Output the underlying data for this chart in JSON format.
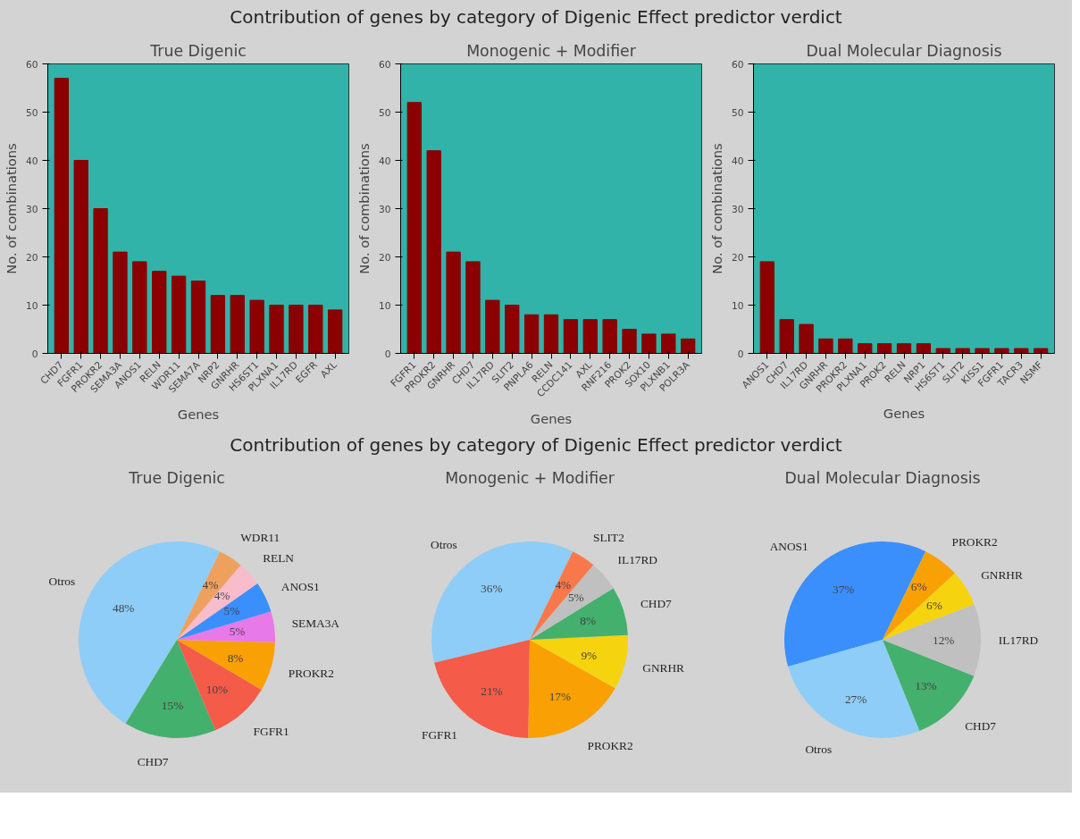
{
  "chart_data": [
    {
      "type": "bar",
      "title": "True Digenic",
      "xlabel": "Genes",
      "ylabel": "No. of combinations",
      "annotations": [
        "Contribution of genes by category of Digenic Effect predictor verdict"
      ],
      "categories": [
        "CHD7",
        "FGFR1",
        "PROKR2",
        "SEMA3A",
        "ANOS1",
        "RELN",
        "WDR11",
        "SEMA7A",
        "NRP2",
        "GNRHR",
        "HS6ST1",
        "PLXNA1",
        "IL17RD",
        "EGFR",
        "AXL"
      ],
      "values": [
        57,
        40,
        30,
        21,
        19,
        17,
        16,
        15,
        12,
        12,
        11,
        10,
        10,
        10,
        9
      ],
      "color": "#8b0000",
      "ylim": [
        0,
        60
      ],
      "yticks": [
        0,
        10,
        20,
        30,
        40,
        50,
        60
      ],
      "grid": false
    },
    {
      "type": "bar",
      "title": "Monogenic + Modifier",
      "xlabel": "Genes",
      "ylabel": "No. of combinations",
      "categories": [
        "FGFR1",
        "PROKR2",
        "GNRHR",
        "CHD7",
        "IL17RD",
        "SLIT2",
        "PNPLA6",
        "RELN",
        "CCDC141",
        "AXL",
        "RNF216",
        "PROK2",
        "SOX10",
        "PLXNB1",
        "POLR3A"
      ],
      "values": [
        52,
        42,
        21,
        19,
        11,
        10,
        8,
        8,
        7,
        7,
        7,
        5,
        4,
        4,
        3
      ],
      "color": "#8b0000",
      "ylim": [
        0,
        60
      ],
      "yticks": [
        0,
        10,
        20,
        30,
        40,
        50,
        60
      ],
      "grid": false
    },
    {
      "type": "bar",
      "title": "Dual Molecular Diagnosis",
      "xlabel": "Genes",
      "ylabel": "No. of combinations",
      "categories": [
        "ANOS1",
        "CHD7",
        "IL17RD",
        "GNRHR",
        "PROKR2",
        "PLXNA1",
        "PROK2",
        "RELN",
        "NRP1",
        "HS6ST1",
        "SLIT2",
        "KISS1",
        "FGFR1",
        "TACR3",
        "NSMF"
      ],
      "values": [
        19,
        7,
        6,
        3,
        3,
        2,
        2,
        2,
        2,
        1,
        1,
        1,
        1,
        1,
        1
      ],
      "color": "#8b0000",
      "ylim": [
        0,
        60
      ],
      "yticks": [
        0,
        10,
        20,
        30,
        40,
        50,
        60
      ],
      "grid": false
    },
    {
      "type": "pie",
      "title": "True Digenic",
      "annotations": [
        "Contribution of genes by category of Digenic Effect predictor verdict"
      ],
      "categories": [
        "Otros",
        "CHD7",
        "FGFR1",
        "PROKR2",
        "SEMA3A",
        "ANOS1",
        "RELN",
        "WDR11"
      ],
      "values": [
        48,
        15,
        10,
        8,
        5,
        5,
        4,
        4
      ],
      "value_labels": [
        "48%",
        "15%",
        "10%",
        "8%",
        "5%",
        "5%",
        "4%",
        "4%"
      ],
      "colors": [
        "#8ecdf7",
        "#44b06e",
        "#f45b48",
        "#f9a005",
        "#e879e8",
        "#3a8ffc",
        "#f8bccb",
        "#eea15e"
      ]
    },
    {
      "type": "pie",
      "title": "Monogenic + Modifier",
      "categories": [
        "Otros",
        "FGFR1",
        "PROKR2",
        "GNRHR",
        "CHD7",
        "IL17RD",
        "SLIT2"
      ],
      "values": [
        36,
        21,
        17,
        9,
        8,
        5,
        4
      ],
      "value_labels": [
        "36%",
        "21%",
        "17%",
        "9%",
        "8%",
        "5%",
        "4%"
      ],
      "colors": [
        "#8ecdf7",
        "#f45b48",
        "#f9a005",
        "#f6d30f",
        "#44b06e",
        "#c0c0c0",
        "#f8784c"
      ]
    },
    {
      "type": "pie",
      "title": "Dual Molecular Diagnosis",
      "categories": [
        "ANOS1",
        "Otros",
        "CHD7",
        "IL17RD",
        "GNRHR",
        "PROKR2"
      ],
      "values": [
        37,
        27,
        13,
        12,
        6,
        6
      ],
      "value_labels": [
        "37%",
        "27%",
        "13%",
        "12%",
        "6%",
        "6%"
      ],
      "colors": [
        "#3a8ffc",
        "#8ecdf7",
        "#44b06e",
        "#c0c0c0",
        "#f6d30f",
        "#f9a005"
      ]
    }
  ]
}
